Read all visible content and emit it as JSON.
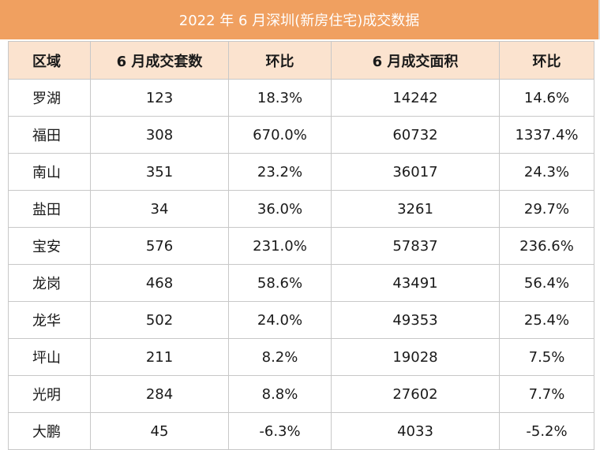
{
  "title": "2022 年 6 月深圳(新房住宅)成交数据",
  "headers": [
    "区域",
    "6 月成交套数",
    "环比",
    "6 月成交面积",
    "环比"
  ],
  "rows": [
    [
      "罗湖",
      "123",
      "18.3%",
      "14242",
      "14.6%"
    ],
    [
      "福田",
      "308",
      "670.0%",
      "60732",
      "1337.4%"
    ],
    [
      "南山",
      "351",
      "23.2%",
      "36017",
      "24.3%"
    ],
    [
      "盐田",
      "34",
      "36.0%",
      "3261",
      "29.7%"
    ],
    [
      "宝安",
      "576",
      "231.0%",
      "57837",
      "236.6%"
    ],
    [
      "龙岗",
      "468",
      "58.6%",
      "43491",
      "56.4%"
    ],
    [
      "龙华",
      "502",
      "24.0%",
      "49353",
      "25.4%"
    ],
    [
      "坪山",
      "211",
      "8.2%",
      "19028",
      "7.5%"
    ],
    [
      "光明",
      "284",
      "8.8%",
      "27602",
      "7.7%"
    ],
    [
      "大鹏",
      "45",
      "-6.3%",
      "4033",
      "-5.2%"
    ]
  ],
  "colors": {
    "title_background": "#f0a060",
    "header_background": "#fbe3cf",
    "border": "#c8c8c8"
  }
}
